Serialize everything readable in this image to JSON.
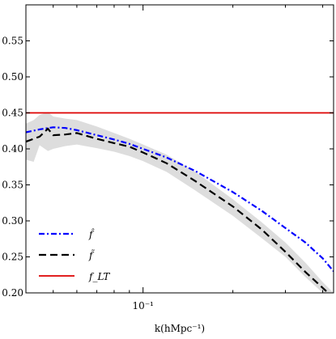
{
  "chart_data": {
    "type": "line",
    "xscale": "log",
    "xlim": [
      0.0405,
      0.435
    ],
    "ylim": [
      0.2,
      0.6
    ],
    "xlabel": "k(hMpc⁻¹)",
    "ylabel": "",
    "title": "",
    "x_ticks": [
      0.1
    ],
    "x_tick_labels": [
      "10⁻¹"
    ],
    "y_ticks": [
      0.2,
      0.25,
      0.3,
      0.35,
      0.4,
      0.45,
      0.5,
      0.55
    ],
    "y_tick_labels": [
      "0.20",
      "0.25",
      "0.30",
      "0.35",
      "0.40",
      "0.45",
      "0.50",
      "0.55"
    ],
    "grid": false,
    "legend_position": "lower-left",
    "series": [
      {
        "name": "f̂",
        "style": "dashdot",
        "color": "#0000ff",
        "x": [
          0.0405,
          0.045,
          0.05,
          0.055,
          0.06,
          0.07,
          0.08,
          0.09,
          0.1,
          0.12,
          0.15,
          0.2,
          0.25,
          0.3,
          0.35,
          0.4,
          0.435
        ],
        "y": [
          0.423,
          0.427,
          0.43,
          0.429,
          0.426,
          0.419,
          0.413,
          0.407,
          0.4,
          0.388,
          0.369,
          0.34,
          0.314,
          0.29,
          0.27,
          0.248,
          0.23
        ]
      },
      {
        "name": "f̃",
        "style": "dashed",
        "color": "#000000",
        "x": [
          0.0405,
          0.045,
          0.048,
          0.05,
          0.055,
          0.06,
          0.07,
          0.08,
          0.09,
          0.1,
          0.12,
          0.15,
          0.2,
          0.25,
          0.3,
          0.35,
          0.4,
          0.425
        ],
        "y": [
          0.41,
          0.417,
          0.428,
          0.419,
          0.42,
          0.422,
          0.414,
          0.408,
          0.403,
          0.395,
          0.38,
          0.355,
          0.32,
          0.288,
          0.257,
          0.229,
          0.207,
          0.197
        ]
      },
      {
        "name": "f_LT",
        "style": "solid",
        "color": "#dd0000",
        "x": [
          0.0405,
          0.435
        ],
        "y": [
          0.45,
          0.45
        ]
      }
    ],
    "band": {
      "color": "#dddddd",
      "x": [
        0.0405,
        0.043,
        0.045,
        0.048,
        0.05,
        0.055,
        0.06,
        0.07,
        0.08,
        0.09,
        0.1,
        0.12,
        0.15,
        0.2,
        0.25,
        0.3,
        0.35,
        0.4,
        0.435
      ],
      "upper": [
        0.435,
        0.44,
        0.447,
        0.451,
        0.445,
        0.442,
        0.44,
        0.431,
        0.422,
        0.414,
        0.406,
        0.392,
        0.368,
        0.33,
        0.298,
        0.27,
        0.242,
        0.215,
        0.2
      ],
      "lower": [
        0.385,
        0.382,
        0.405,
        0.397,
        0.4,
        0.404,
        0.406,
        0.401,
        0.396,
        0.39,
        0.383,
        0.368,
        0.342,
        0.307,
        0.276,
        0.25,
        0.222,
        0.2,
        0.2
      ]
    }
  }
}
